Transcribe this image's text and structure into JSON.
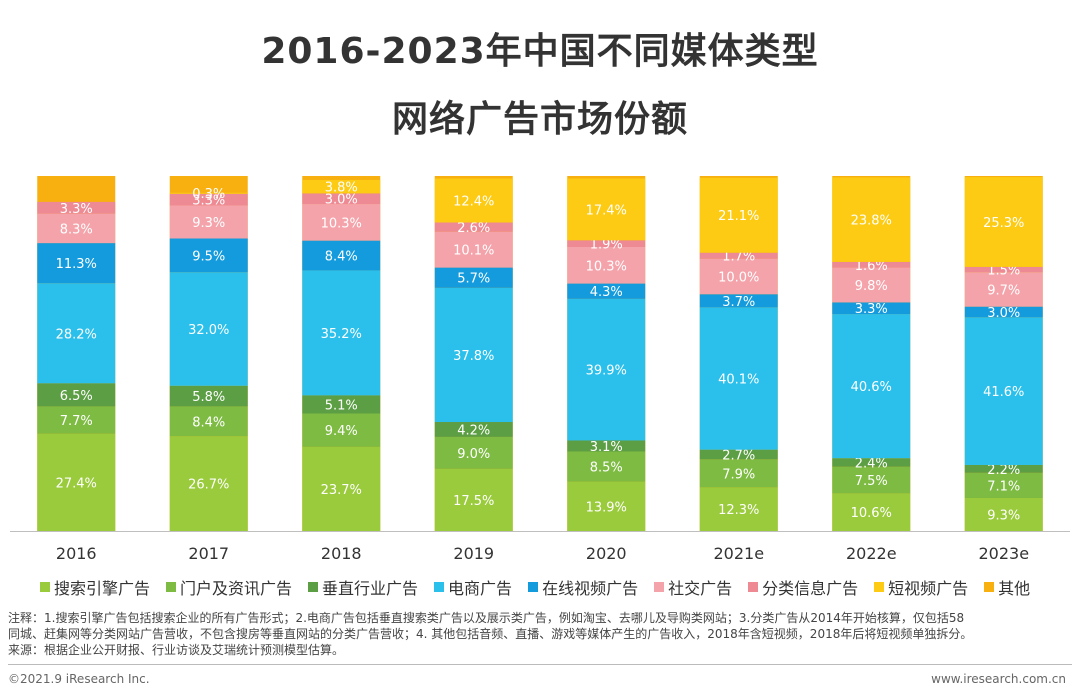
{
  "title_line1": "2016-2023年中国不同媒体类型",
  "title_line2": "网络广告市场份额",
  "chart_data": {
    "type": "bar",
    "stacked": true,
    "percent": true,
    "categories": [
      "2016",
      "2017",
      "2018",
      "2019",
      "2020",
      "2021e",
      "2022e",
      "2023e"
    ],
    "series": [
      {
        "name": "搜索引擎广告",
        "color": "#9ACB3C",
        "values": [
          27.4,
          26.7,
          23.7,
          17.5,
          13.9,
          12.3,
          10.6,
          9.3
        ]
      },
      {
        "name": "门户及资讯广告",
        "color": "#7DBB42",
        "values": [
          7.7,
          8.4,
          9.4,
          9.0,
          8.5,
          7.9,
          7.5,
          7.1
        ]
      },
      {
        "name": "垂直行业广告",
        "color": "#5C9E44",
        "values": [
          6.5,
          5.8,
          5.1,
          4.2,
          3.1,
          2.7,
          2.4,
          2.2
        ]
      },
      {
        "name": "电商广告",
        "color": "#2BC0EC",
        "values": [
          28.2,
          32.0,
          35.2,
          37.8,
          39.9,
          40.1,
          40.6,
          41.6
        ]
      },
      {
        "name": "在线视频广告",
        "color": "#139BDD",
        "values": [
          11.3,
          9.5,
          8.4,
          5.7,
          4.3,
          3.7,
          3.3,
          3.0
        ]
      },
      {
        "name": "社交广告",
        "color": "#F4A3AA",
        "values": [
          8.3,
          9.3,
          10.3,
          10.1,
          10.3,
          10.0,
          9.8,
          9.7
        ]
      },
      {
        "name": "分类信息广告",
        "color": "#EE8A94",
        "values": [
          3.3,
          3.3,
          3.0,
          2.6,
          1.9,
          1.7,
          1.6,
          1.5
        ]
      },
      {
        "name": "短视频广告",
        "color": "#FDCB13",
        "values": [
          null,
          0.3,
          3.8,
          12.4,
          17.4,
          21.1,
          23.8,
          25.3
        ]
      },
      {
        "name": "其他",
        "color": "#F7B010",
        "values": [
          null,
          null,
          null,
          null,
          null,
          null,
          null,
          null
        ]
      }
    ],
    "ylim": [
      0,
      100
    ],
    "grid": false,
    "legend_position": "bottom"
  },
  "notes": {
    "line1": "注释：1.搜索引擎广告包括搜索企业的所有广告形式；2.电商广告包括垂直搜索类广告以及展示类广告，例如淘宝、去哪儿及导购类网站；3.分类广告从2014年开始核算，仅包括58",
    "line2": "同城、赶集网等分类网站广告营收，不包含搜房等垂直网站的分类广告营收；4. 其他包括音频、直播、游戏等媒体产生的广告收入，2018年含短视频，2018年后将短视频单独拆分。",
    "line3": "来源：根据企业公开财报、行业访谈及艾瑞统计预测模型估算。"
  },
  "footer": {
    "copyright": "©2021.9 iResearch Inc.",
    "website": "www.iresearch.com.cn"
  }
}
